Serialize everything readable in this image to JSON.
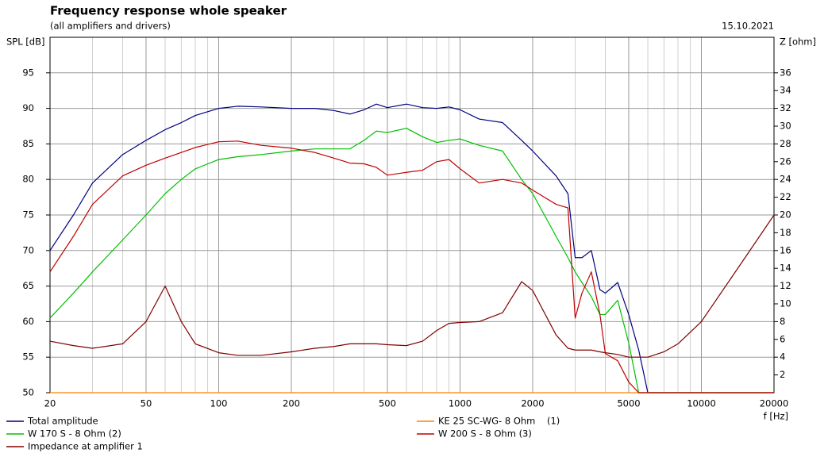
{
  "chart_data": {
    "type": "line",
    "title": "Frequency response whole speaker",
    "subtitle": "(all amplifiers and drivers)",
    "date": "15.10.2021",
    "ylabel": "SPL [dB]",
    "y2label": "Z [ohm]",
    "xlabel": "f [Hz]",
    "xlog": true,
    "grid": true,
    "xlim": [
      20,
      20000
    ],
    "xticks": [
      20,
      50,
      100,
      200,
      500,
      1000,
      2000,
      5000,
      10000,
      20000
    ],
    "xminor": [
      30,
      40,
      60,
      70,
      80,
      90,
      300,
      400,
      600,
      700,
      800,
      900,
      3000,
      4000,
      6000,
      7000,
      8000,
      9000
    ],
    "ylim": [
      50,
      100
    ],
    "yticks": [
      50,
      55,
      60,
      65,
      70,
      75,
      80,
      85,
      90,
      95
    ],
    "y2lim": [
      0,
      40
    ],
    "y2ticks": [
      2,
      4,
      6,
      8,
      10,
      12,
      14,
      16,
      18,
      20,
      22,
      24,
      26,
      28,
      30,
      32,
      34,
      36
    ],
    "x": [
      20,
      25,
      30,
      40,
      50,
      60,
      70,
      80,
      100,
      120,
      150,
      200,
      250,
      300,
      350,
      400,
      450,
      500,
      600,
      700,
      800,
      900,
      1000,
      1200,
      1500,
      1800,
      2000,
      2500,
      2800,
      3000,
      3200,
      3500,
      3800,
      4000,
      4500,
      5000,
      5500,
      6000,
      7000,
      8000,
      10000,
      15000,
      20000
    ],
    "series": [
      {
        "name": "Total amplitude",
        "color": "#000080",
        "values": [
          70,
          75,
          79.5,
          83.5,
          85.5,
          87,
          88,
          89,
          90,
          90.3,
          90.2,
          90,
          90,
          89.7,
          89.2,
          89.8,
          90.6,
          90.1,
          90.6,
          90.1,
          90,
          90.2,
          89.8,
          88.5,
          88,
          85.5,
          84,
          80.5,
          78,
          69,
          69,
          70,
          64.5,
          64,
          65.5,
          61,
          56,
          50,
          50,
          50,
          50,
          50,
          50
        ]
      },
      {
        "name": "KE 25 SC-WG- 8 Ohm    (1)",
        "color": "#ff8000",
        "values": [
          50,
          50,
          50,
          50,
          50,
          50,
          50,
          50,
          50,
          50,
          50,
          50,
          50,
          50,
          50,
          50,
          50,
          50,
          50,
          50,
          50,
          50,
          50,
          50,
          50,
          50,
          50,
          50,
          50,
          50,
          50,
          50,
          50,
          50,
          50,
          50,
          50,
          50,
          50,
          50,
          50,
          50,
          50
        ]
      },
      {
        "name": "W 170 S - 8 Ohm (2)",
        "color": "#00c000",
        "values": [
          60.5,
          64,
          67,
          71.5,
          75,
          78,
          80,
          81.5,
          82.8,
          83.2,
          83.5,
          84,
          84.3,
          84.3,
          84.3,
          85.5,
          86.8,
          86.6,
          87.2,
          86,
          85.2,
          85.5,
          85.7,
          84.8,
          84,
          80,
          78,
          72,
          69,
          67,
          65.5,
          63.5,
          61,
          61,
          63,
          57,
          50,
          50,
          50,
          50,
          50,
          50,
          50
        ]
      },
      {
        "name": "W 200 S - 8 Ohm (3)",
        "color": "#c00000",
        "values": [
          67,
          72,
          76.5,
          80.5,
          82,
          83,
          83.8,
          84.5,
          85.3,
          85.4,
          84.8,
          84.4,
          83.8,
          83,
          82.3,
          82.2,
          81.7,
          80.6,
          81,
          81.3,
          82.5,
          82.8,
          81.5,
          79.5,
          80,
          79.5,
          78.5,
          76.5,
          76,
          60.5,
          64,
          67,
          61,
          55.5,
          54.5,
          51.5,
          50,
          50,
          50,
          50,
          50,
          50,
          50
        ]
      },
      {
        "name": "Impedance at amplifier 1",
        "color": "#800000",
        "axis": "y2",
        "values": [
          5.8,
          5.3,
          5,
          5.5,
          8,
          12,
          8,
          5.5,
          4.5,
          4.2,
          4.2,
          4.6,
          5,
          5.2,
          5.5,
          5.5,
          5.5,
          5.4,
          5.3,
          5.8,
          7,
          7.8,
          7.9,
          8,
          9,
          12.5,
          11.5,
          6.5,
          5,
          4.8,
          4.8,
          4.8,
          4.6,
          4.5,
          4.3,
          4,
          4,
          4,
          4.6,
          5.5,
          8,
          15,
          20
        ]
      }
    ]
  }
}
